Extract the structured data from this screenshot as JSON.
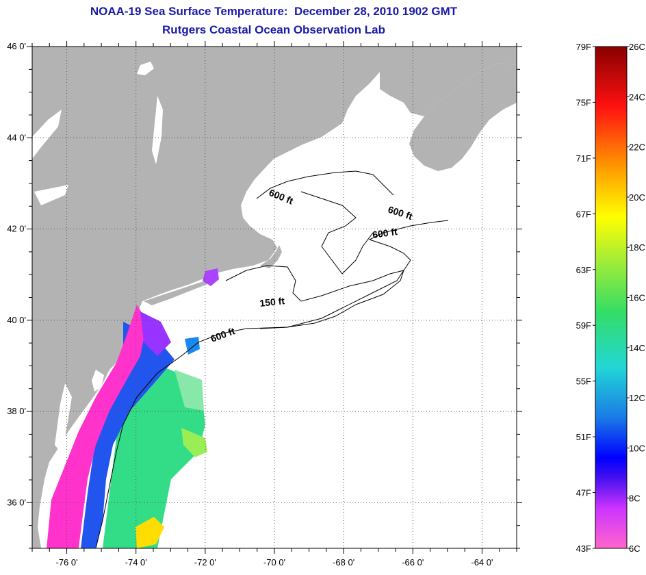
{
  "header": {
    "title": "NOAA-19 Sea Surface Temperature:  December 28, 2010 1902 GMT",
    "subtitle": "Rutgers Coastal Ocean Observation Lab"
  },
  "map": {
    "lon_range": [
      -77,
      -63
    ],
    "lat_range": [
      35,
      46
    ],
    "lon_ticks": [
      {
        "value": -76,
        "label": "-76 0'"
      },
      {
        "value": -74,
        "label": "-74 0'"
      },
      {
        "value": -72,
        "label": "-72 0'"
      },
      {
        "value": -70,
        "label": "-70 0'"
      },
      {
        "value": -68,
        "label": "-68 0'"
      },
      {
        "value": -66,
        "label": "-66 0'"
      },
      {
        "value": -64,
        "label": "-64 0'"
      }
    ],
    "lat_ticks": [
      {
        "value": 46,
        "label": "46 0'"
      },
      {
        "value": 44,
        "label": "44 0'"
      },
      {
        "value": 42,
        "label": "42 0'"
      },
      {
        "value": 40,
        "label": "40 0'"
      },
      {
        "value": 38,
        "label": "38 0'"
      },
      {
        "value": 36,
        "label": "36 0'"
      }
    ],
    "grid": "dotted",
    "contour_labels": [
      {
        "text": "600 ft"
      },
      {
        "text": "600 ft"
      },
      {
        "text": "600 ft"
      },
      {
        "text": "150 ft"
      },
      {
        "text": "600 ft"
      }
    ],
    "colors": {
      "land": "#b3b3b3",
      "ocean": "#ffffff"
    }
  },
  "colorbar": {
    "fahrenheit_labels": [
      "79F",
      "75F",
      "71F",
      "67F",
      "63F",
      "59F",
      "55F",
      "51F",
      "47F",
      "43F"
    ],
    "celsius_labels": [
      "26C",
      "24C",
      "22C",
      "20C",
      "18C",
      "16C",
      "14C",
      "12C",
      "10C",
      "8C",
      "6C"
    ],
    "range_f": [
      43,
      79
    ],
    "range_c": [
      6,
      26
    ]
  }
}
